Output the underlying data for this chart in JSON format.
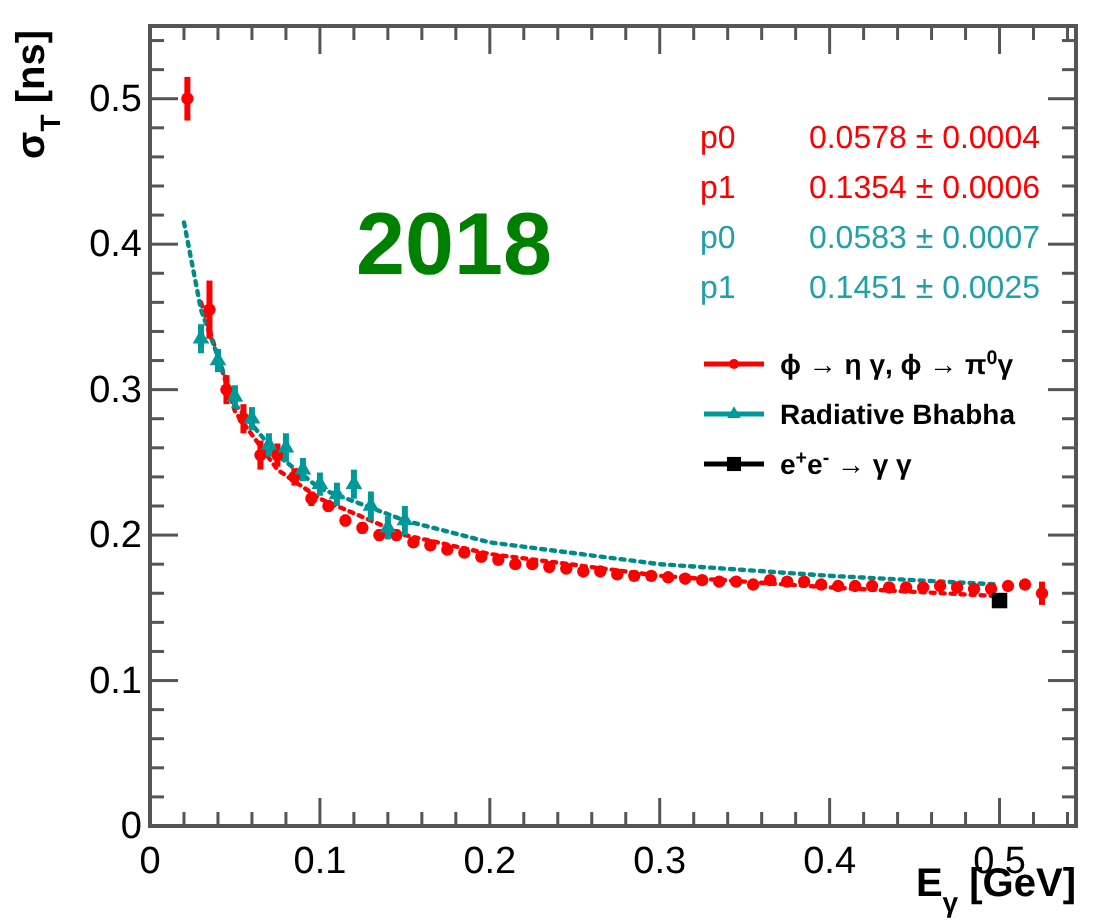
{
  "chart_data": {
    "type": "scatter",
    "title": "2018",
    "xlabel": "E$_{γ}$ [GeV]",
    "ylabel": "σ$_{T}$ [ns]",
    "xlim": [
      0,
      0.545
    ],
    "ylim": [
      0,
      0.55
    ],
    "xticks": [
      0,
      {
        "value": 0.02,
        "label": null
      },
      {
        "value": 0.04,
        "label": null
      },
      {
        "value": 0.06,
        "label": null
      },
      {
        "value": 0.08,
        "label": null
      },
      0.1,
      {
        "value": 0.12,
        "label": null
      },
      {
        "value": 0.14,
        "label": null
      },
      {
        "value": 0.16,
        "label": null
      },
      {
        "value": 0.18,
        "label": null
      },
      0.2,
      {
        "value": 0.22,
        "label": null
      },
      {
        "value": 0.24,
        "label": null
      },
      {
        "value": 0.26,
        "label": null
      },
      {
        "value": 0.28,
        "label": null
      },
      0.3,
      {
        "value": 0.32,
        "label": null
      },
      {
        "value": 0.34,
        "label": null
      },
      {
        "value": 0.36,
        "label": null
      },
      {
        "value": 0.38,
        "label": null
      },
      0.4,
      {
        "value": 0.42,
        "label": null
      },
      {
        "value": 0.44,
        "label": null
      },
      {
        "value": 0.46,
        "label": null
      },
      {
        "value": 0.48,
        "label": null
      },
      0.5,
      {
        "value": 0.52,
        "label": null
      },
      {
        "value": 0.54,
        "label": null
      }
    ],
    "yticks": [
      0,
      {
        "value": 0.02,
        "label": null
      },
      {
        "value": 0.04,
        "label": null
      },
      {
        "value": 0.06,
        "label": null
      },
      {
        "value": 0.08,
        "label": null
      },
      0.1,
      {
        "value": 0.12,
        "label": null
      },
      {
        "value": 0.14,
        "label": null
      },
      {
        "value": 0.16,
        "label": null
      },
      {
        "value": 0.18,
        "label": null
      },
      0.2,
      {
        "value": 0.22,
        "label": null
      },
      {
        "value": 0.24,
        "label": null
      },
      {
        "value": 0.26,
        "label": null
      },
      {
        "value": 0.28,
        "label": null
      },
      0.3,
      {
        "value": 0.32,
        "label": null
      },
      {
        "value": 0.34,
        "label": null
      },
      {
        "value": 0.36,
        "label": null
      },
      {
        "value": 0.38,
        "label": null
      },
      0.4,
      {
        "value": 0.42,
        "label": null
      },
      {
        "value": 0.44,
        "label": null
      },
      {
        "value": 0.46,
        "label": null
      },
      {
        "value": 0.48,
        "label": null
      },
      0.5,
      {
        "value": 0.52,
        "label": null
      },
      {
        "value": 0.54,
        "label": null
      }
    ],
    "legend": "top right",
    "grid": false,
    "annotations": [
      "p0      0.0578 ± 0.0004",
      "p1      0.1354 ± 0.0006",
      "p0      0.0583 ± 0.0007",
      "p1      0.1451 ± 0.0025"
    ],
    "series": [
      {
        "type": "line",
        "color": "#ff0000",
        "line_style": "dotted",
        "x": [
          0.03,
          0.05,
          0.075,
          0.1,
          0.15,
          0.2,
          0.3,
          0.4,
          0.5
        ],
        "values": [
          0.36,
          0.285,
          0.245,
          0.225,
          0.2,
          0.187,
          0.172,
          0.164,
          0.158
        ]
      },
      {
        "type": "line",
        "color": "#008b8b",
        "line_style": "dotted",
        "x": [
          0.02,
          0.03,
          0.05,
          0.075,
          0.1,
          0.15,
          0.2,
          0.3,
          0.4,
          0.5
        ],
        "values": [
          0.415,
          0.355,
          0.29,
          0.255,
          0.232,
          0.21,
          0.195,
          0.18,
          0.172,
          0.166
        ]
      },
      {
        "name": "ϕ → η γ, ϕ → π$^{0}$γ",
        "color": "#ff0000",
        "marker": "circle",
        "x": [
          0.022,
          0.035,
          0.045,
          0.055,
          0.065,
          0.075,
          0.085,
          0.095,
          0.105,
          0.115,
          0.125,
          0.135,
          0.145,
          0.155,
          0.165,
          0.175,
          0.185,
          0.195,
          0.205,
          0.215,
          0.225,
          0.235,
          0.245,
          0.255,
          0.265,
          0.275,
          0.285,
          0.295,
          0.305,
          0.315,
          0.325,
          0.335,
          0.345,
          0.355,
          0.365,
          0.375,
          0.385,
          0.395,
          0.405,
          0.415,
          0.425,
          0.435,
          0.445,
          0.455,
          0.465,
          0.475,
          0.485,
          0.495,
          0.505,
          0.515,
          0.525
        ],
        "values": [
          0.5,
          0.355,
          0.3,
          0.28,
          0.255,
          0.255,
          0.24,
          0.225,
          0.22,
          0.21,
          0.205,
          0.2,
          0.2,
          0.195,
          0.193,
          0.19,
          0.188,
          0.185,
          0.183,
          0.18,
          0.18,
          0.178,
          0.177,
          0.175,
          0.175,
          0.173,
          0.172,
          0.172,
          0.171,
          0.17,
          0.169,
          0.168,
          0.168,
          0.166,
          0.169,
          0.168,
          0.168,
          0.166,
          0.165,
          0.165,
          0.165,
          0.164,
          0.164,
          0.164,
          0.165,
          0.164,
          0.163,
          0.163,
          0.165,
          0.166,
          0.16
        ],
        "errors": [
          0.015,
          0.02,
          0.01,
          0.01,
          0.01,
          0.008,
          0.006,
          0.005,
          0.004,
          0.004,
          0.004,
          0.004,
          0.004,
          null,
          null,
          null,
          null,
          null,
          null,
          null,
          null,
          null,
          null,
          null,
          null,
          null,
          null,
          null,
          null,
          null,
          null,
          null,
          null,
          null,
          null,
          null,
          null,
          null,
          null,
          null,
          null,
          null,
          null,
          null,
          null,
          null,
          null,
          null,
          null,
          null,
          0.008
        ]
      },
      {
        "name": "Radiative Bhabha",
        "color": "#009999",
        "marker": "triangle",
        "x": [
          0.03,
          0.04,
          0.05,
          0.06,
          0.07,
          0.08,
          0.09,
          0.1,
          0.11,
          0.12,
          0.13,
          0.14,
          0.15
        ],
        "values": [
          0.335,
          0.32,
          0.295,
          0.28,
          0.262,
          0.26,
          0.245,
          0.235,
          0.228,
          0.235,
          0.22,
          0.205,
          0.21
        ],
        "errors": [
          0.01,
          0.008,
          0.008,
          0.008,
          0.008,
          0.01,
          0.008,
          0.008,
          0.008,
          0.01,
          0.01,
          0.008,
          0.01
        ]
      },
      {
        "name": "e$^{+}$e$^{-}$ → γ γ",
        "color": "#000000",
        "marker": "square",
        "x": [
          0.5
        ],
        "values": [
          0.155
        ]
      }
    ]
  }
}
